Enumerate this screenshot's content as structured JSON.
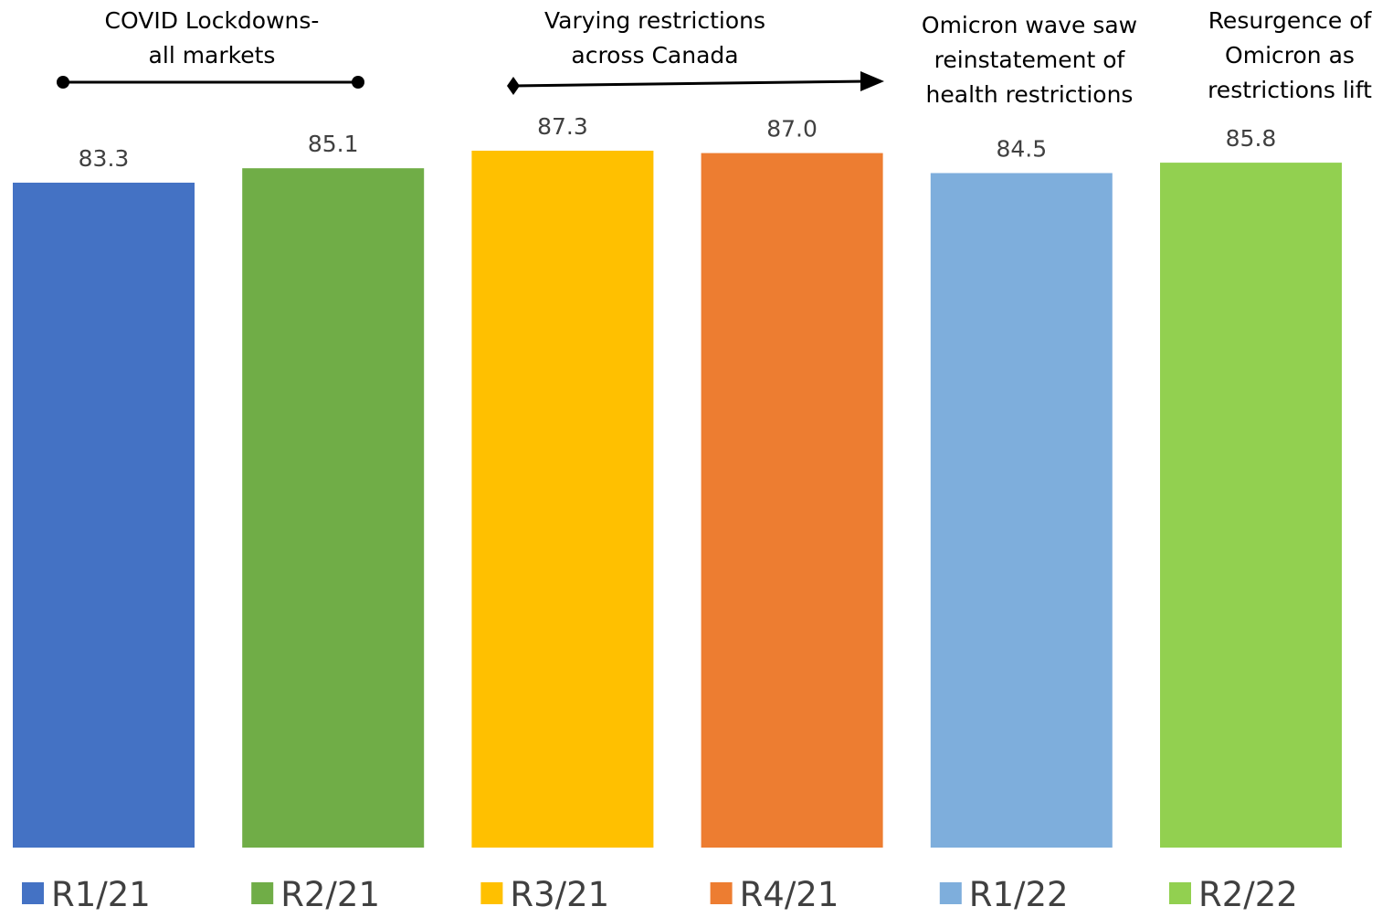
{
  "chart_data": {
    "type": "bar",
    "categories": [
      "R1/21",
      "R2/21",
      "R3/21",
      "R4/21",
      "R1/22",
      "R2/22"
    ],
    "values": [
      83.3,
      85.1,
      87.3,
      87.0,
      84.5,
      85.8
    ],
    "value_labels": [
      "83.3",
      "85.1",
      "87.3",
      "87.0",
      "84.5",
      "85.8"
    ],
    "colors": [
      "#4472C4",
      "#70AD47",
      "#FFC000",
      "#ED7D31",
      "#7EAEDC",
      "#92D050"
    ],
    "ylim": [
      0,
      87.3
    ],
    "grid": false,
    "legend_position": "bottom",
    "title": "",
    "xlabel": "",
    "ylabel": "",
    "annotations": [
      {
        "lines": [
          "COVID Lockdowns-",
          "all markets"
        ],
        "span": [
          "R1/21",
          "R2/21"
        ],
        "marker": "dot-to-dot"
      },
      {
        "lines": [
          "Varying restrictions",
          "across Canada"
        ],
        "span": [
          "R3/21",
          "R4/21"
        ],
        "marker": "diamond-to-arrow"
      },
      {
        "lines": [
          "Omicron wave saw",
          "reinstatement of",
          "health restrictions"
        ],
        "span": [
          "R1/22"
        ],
        "marker": "none"
      },
      {
        "lines": [
          "Resurgence of",
          "Omicron as",
          "restrictions lift"
        ],
        "span": [
          "R2/22"
        ],
        "marker": "none"
      }
    ]
  }
}
